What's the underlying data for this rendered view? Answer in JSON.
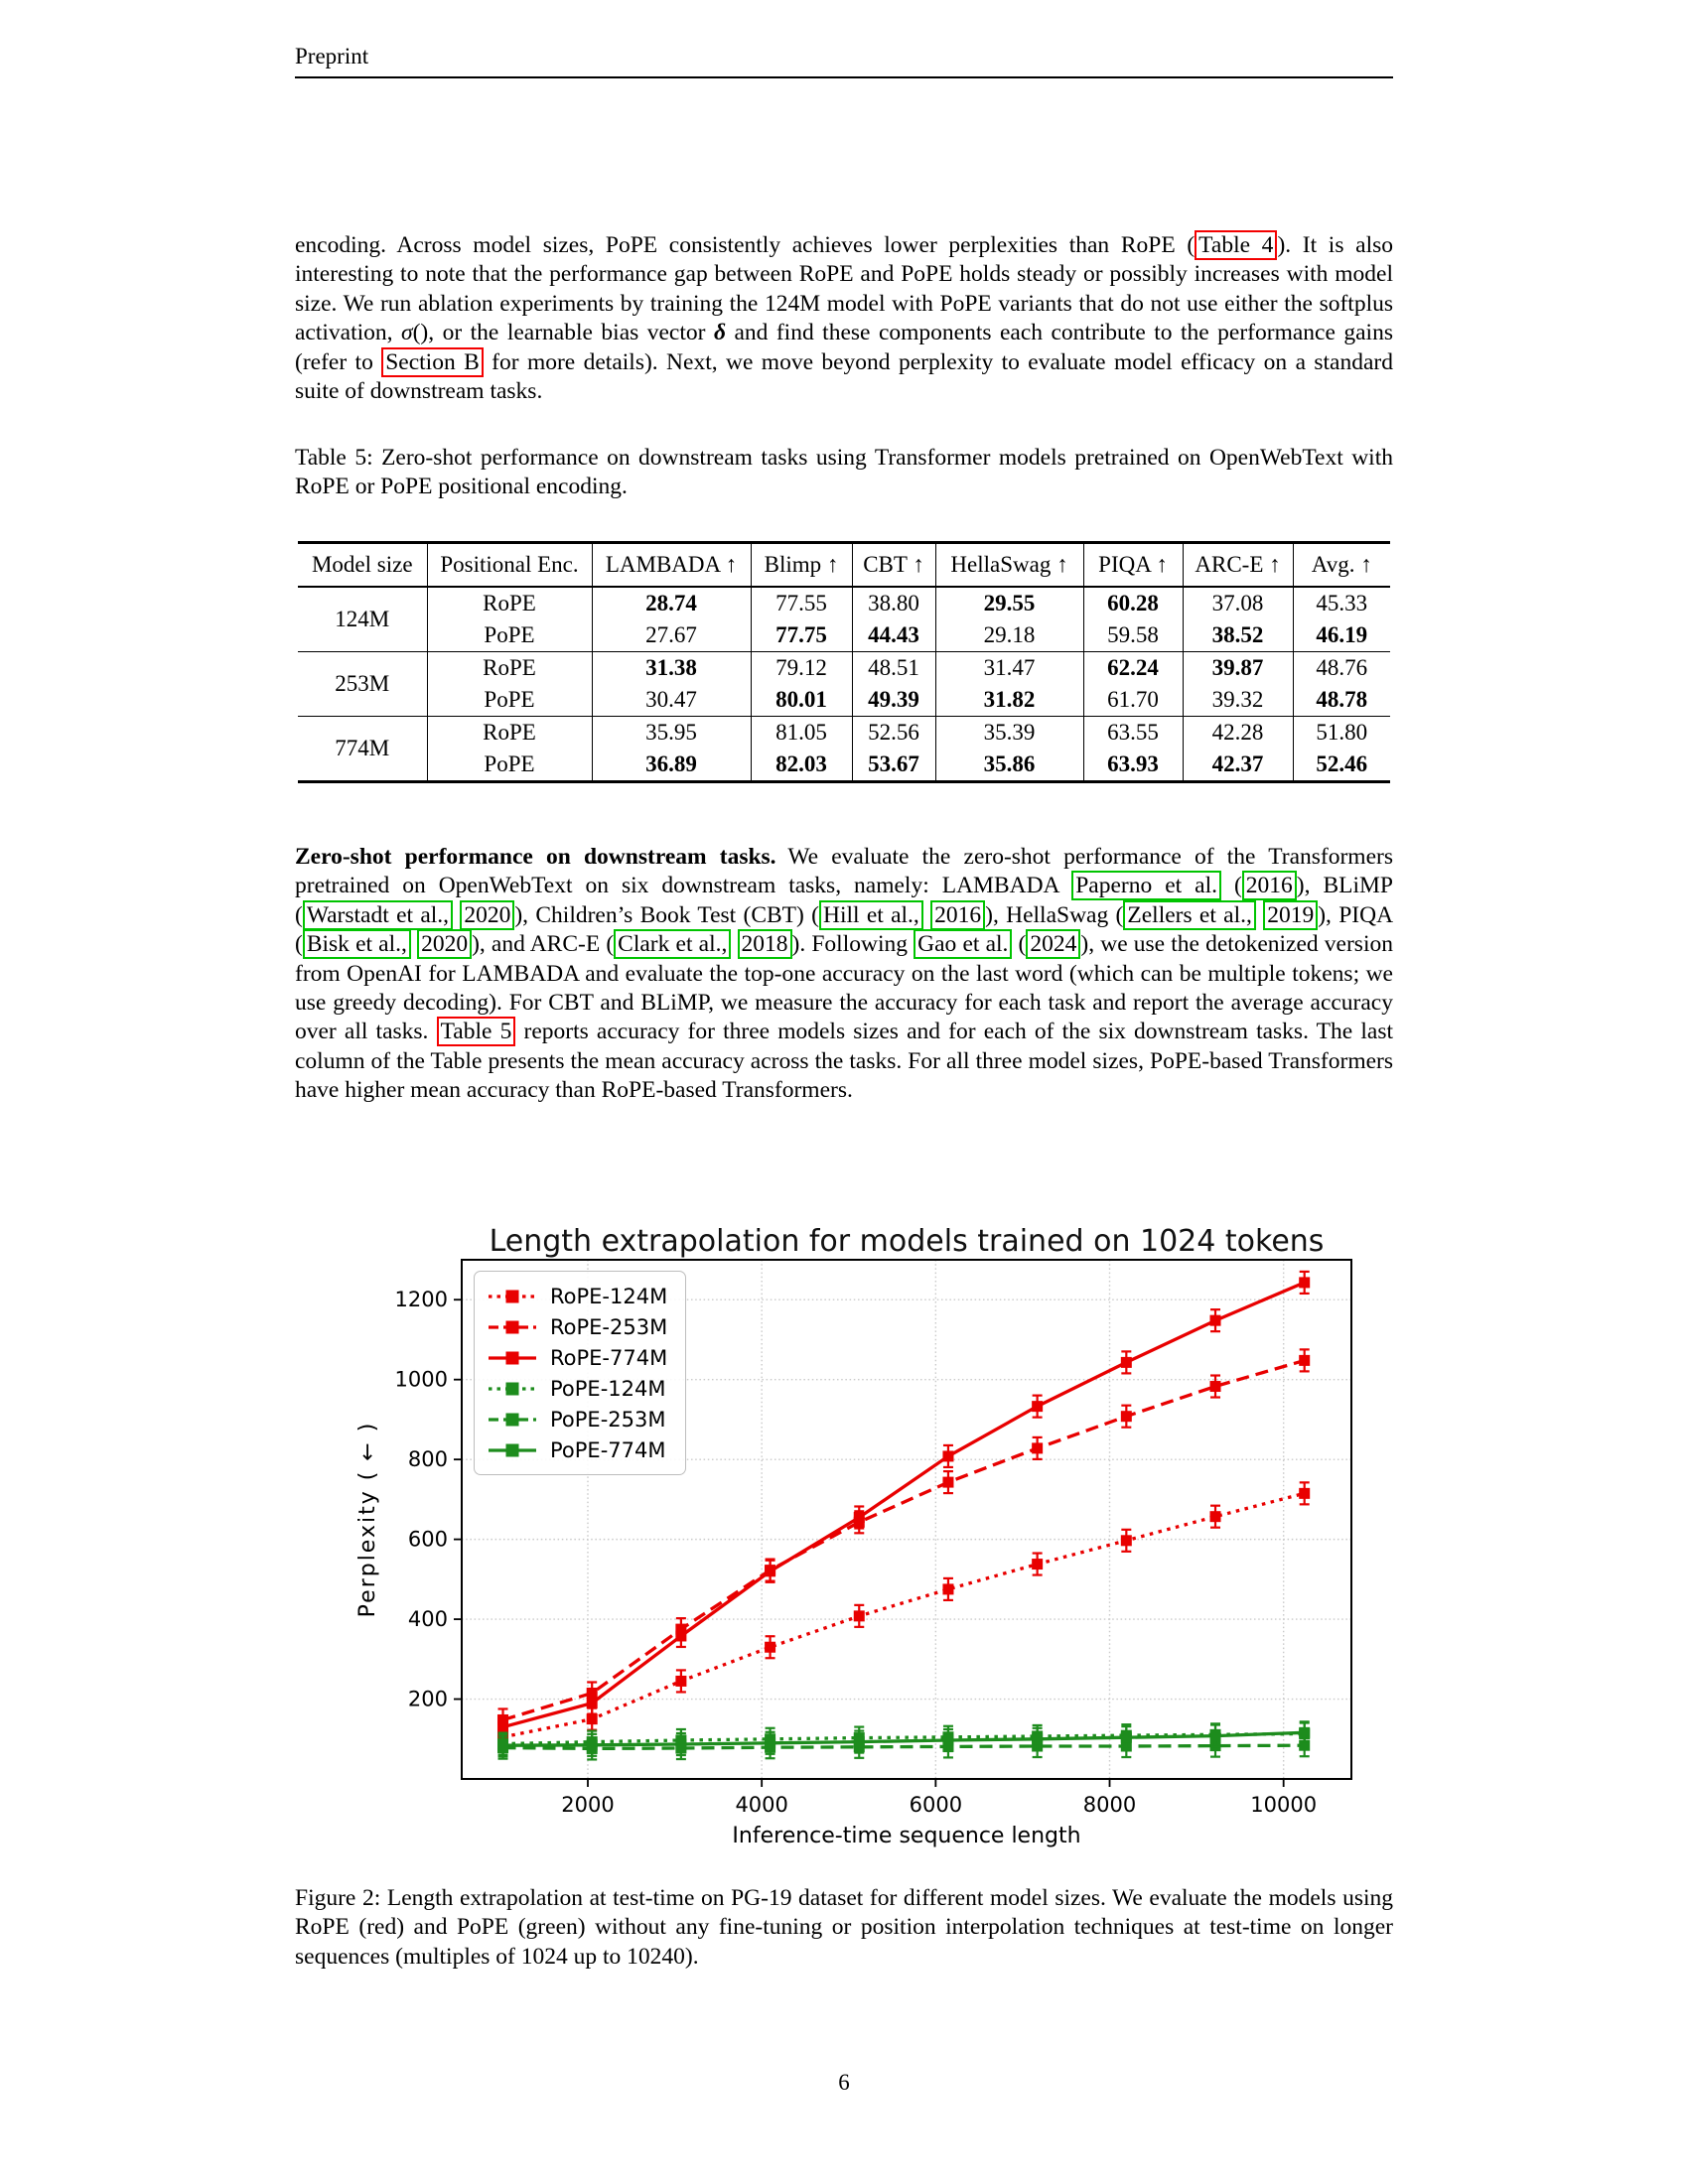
{
  "page": {
    "header": "Preprint",
    "page_number": "6"
  },
  "colors": {
    "link_red": "#f40000",
    "cite_green": "#00c400",
    "rope_red": "#e80000",
    "pope_green": "#1d8c1d"
  },
  "paragraphs": {
    "p1": [
      {
        "t": "encoding.  Across model sizes, PoPE consistently achieves lower perplexities than RoPE ("
      },
      {
        "t": "Table 4",
        "box": "red",
        "name": "ref-table-4"
      },
      {
        "t": "). It is also interesting to note that the performance gap between RoPE and PoPE holds steady or possibly increases with model size.  We run ablation experiments by training the 124M model with PoPE variants that do not use either the softplus activation, "
      },
      {
        "t": "σ",
        "style": "i"
      },
      {
        "t": "(), or the learnable bias vector "
      },
      {
        "t": "δ",
        "style": "bi"
      },
      {
        "t": " and find these components each contribute to the performance gains (refer to "
      },
      {
        "t": "Section B",
        "box": "red",
        "name": "ref-section-b"
      },
      {
        "t": " for more details). Next, we move beyond perplexity to evaluate model efficacy on a standard suite of downstream tasks."
      }
    ],
    "p2": [
      {
        "t": "Zero-shot performance on downstream tasks.",
        "style": "b"
      },
      {
        "t": " We evaluate the zero-shot performance of the Transformers pretrained on OpenWebText on six downstream tasks, namely: LAMBADA "
      },
      {
        "t": "Paperno et al.",
        "box": "green",
        "name": "cite-paperno"
      },
      {
        "t": " ("
      },
      {
        "t": "2016",
        "box": "green",
        "name": "cite-paperno-year"
      },
      {
        "t": "), BLiMP ("
      },
      {
        "t": "Warstadt et al.,",
        "box": "green",
        "name": "cite-warstadt"
      },
      {
        "t": " "
      },
      {
        "t": "2020",
        "box": "green",
        "name": "cite-warstadt-year"
      },
      {
        "t": "), Children’s Book Test (CBT) ("
      },
      {
        "t": "Hill et al.,",
        "box": "green",
        "name": "cite-hill"
      },
      {
        "t": " "
      },
      {
        "t": "2016",
        "box": "green",
        "name": "cite-hill-year"
      },
      {
        "t": "), HellaSwag ("
      },
      {
        "t": "Zellers et al.,",
        "box": "green",
        "name": "cite-zellers"
      },
      {
        "t": " "
      },
      {
        "t": "2019",
        "box": "green",
        "name": "cite-zellers-year"
      },
      {
        "t": "), PIQA ("
      },
      {
        "t": "Bisk et al.,",
        "box": "green",
        "name": "cite-bisk"
      },
      {
        "t": " "
      },
      {
        "t": "2020",
        "box": "green",
        "name": "cite-bisk-year"
      },
      {
        "t": "), and ARC-E ("
      },
      {
        "t": "Clark et al.,",
        "box": "green",
        "name": "cite-clark"
      },
      {
        "t": " "
      },
      {
        "t": "2018",
        "box": "green",
        "name": "cite-clark-year"
      },
      {
        "t": "). Following "
      },
      {
        "t": "Gao et al.",
        "box": "green",
        "name": "cite-gao"
      },
      {
        "t": " ("
      },
      {
        "t": "2024",
        "box": "green",
        "name": "cite-gao-year"
      },
      {
        "t": "), we use the detokenized version from OpenAI for LAMBADA and evaluate the top-one accuracy on the last word (which can be multiple tokens; we use greedy decoding).  For CBT and BLiMP, we measure the accuracy for each task and report the average accuracy over all tasks. "
      },
      {
        "t": "Table 5",
        "box": "red",
        "name": "ref-table-5"
      },
      {
        "t": " reports accuracy for three models sizes and for each of the six downstream tasks.  The last column of the Table presents the mean accuracy across the tasks. For all three model sizes, PoPE-based Transformers have higher mean accuracy than RoPE-based Transformers."
      }
    ]
  },
  "table5": {
    "caption": "Table 5:  Zero-shot performance on downstream tasks using Transformer models pretrained on OpenWebText with RoPE or PoPE positional encoding.",
    "columns": [
      "Model size",
      "Positional Enc.",
      "LAMBADA ↑",
      "Blimp ↑",
      "CBT ↑",
      "HellaSwag ↑",
      "PIQA ↑",
      "ARC-E ↑",
      "Avg. ↑"
    ],
    "groups": [
      {
        "model_size": "124M",
        "rows": [
          {
            "enc": "RoPE",
            "cells": [
              {
                "v": "28.74",
                "b": true
              },
              {
                "v": "77.55"
              },
              {
                "v": "38.80"
              },
              {
                "v": "29.55",
                "b": true
              },
              {
                "v": "60.28",
                "b": true
              },
              {
                "v": "37.08"
              },
              {
                "v": "45.33"
              }
            ]
          },
          {
            "enc": "PoPE",
            "cells": [
              {
                "v": "27.67"
              },
              {
                "v": "77.75",
                "b": true
              },
              {
                "v": "44.43",
                "b": true
              },
              {
                "v": "29.18"
              },
              {
                "v": "59.58"
              },
              {
                "v": "38.52",
                "b": true
              },
              {
                "v": "46.19",
                "b": true
              }
            ]
          }
        ]
      },
      {
        "model_size": "253M",
        "rows": [
          {
            "enc": "RoPE",
            "cells": [
              {
                "v": "31.38",
                "b": true
              },
              {
                "v": "79.12"
              },
              {
                "v": "48.51"
              },
              {
                "v": "31.47"
              },
              {
                "v": "62.24",
                "b": true
              },
              {
                "v": "39.87",
                "b": true
              },
              {
                "v": "48.76"
              }
            ]
          },
          {
            "enc": "PoPE",
            "cells": [
              {
                "v": "30.47"
              },
              {
                "v": "80.01",
                "b": true
              },
              {
                "v": "49.39",
                "b": true
              },
              {
                "v": "31.82",
                "b": true
              },
              {
                "v": "61.70"
              },
              {
                "v": "39.32"
              },
              {
                "v": "48.78",
                "b": true
              }
            ]
          }
        ]
      },
      {
        "model_size": "774M",
        "rows": [
          {
            "enc": "RoPE",
            "cells": [
              {
                "v": "35.95"
              },
              {
                "v": "81.05"
              },
              {
                "v": "52.56"
              },
              {
                "v": "35.39"
              },
              {
                "v": "63.55"
              },
              {
                "v": "42.28"
              },
              {
                "v": "51.80"
              }
            ]
          },
          {
            "enc": "PoPE",
            "cells": [
              {
                "v": "36.89",
                "b": true
              },
              {
                "v": "82.03",
                "b": true
              },
              {
                "v": "53.67",
                "b": true
              },
              {
                "v": "35.86",
                "b": true
              },
              {
                "v": "63.93",
                "b": true
              },
              {
                "v": "42.37",
                "b": true
              },
              {
                "v": "52.46",
                "b": true
              }
            ]
          }
        ]
      }
    ]
  },
  "figure2": {
    "caption": "Figure 2: Length extrapolation at test-time on PG-19 dataset for different model sizes.  We evaluate the models using RoPE (red) and PoPE (green) without any fine-tuning or position interpolation techniques at test-time on longer sequences (multiples of 1024 up to 10240)."
  },
  "chart_data": {
    "type": "line",
    "title": "Length extrapolation for models trained on 1024 tokens",
    "xlabel": "Inference-time sequence length",
    "ylabel": "Perplexity ( ← )",
    "x": [
      1024,
      2048,
      3072,
      4096,
      5120,
      6144,
      7168,
      8192,
      9216,
      10240
    ],
    "xticks": [
      2000,
      4000,
      6000,
      8000,
      10000
    ],
    "yticks": [
      200,
      400,
      600,
      800,
      1000,
      1200
    ],
    "xlim": [
      550,
      10780
    ],
    "ylim": [
      0,
      1300
    ],
    "grid": true,
    "legend_position": "upper-left",
    "series": [
      {
        "name": "RoPE-124M",
        "color": "#e80000",
        "dash": "dotted",
        "values": [
          105,
          150,
          245,
          330,
          408,
          475,
          538,
          597,
          657,
          715
        ]
      },
      {
        "name": "RoPE-253M",
        "color": "#e80000",
        "dash": "dashed",
        "values": [
          148,
          215,
          375,
          523,
          643,
          743,
          828,
          908,
          983,
          1048
        ]
      },
      {
        "name": "RoPE-774M",
        "color": "#e80000",
        "dash": "solid",
        "values": [
          130,
          190,
          358,
          520,
          655,
          808,
          933,
          1043,
          1148,
          1243
        ]
      },
      {
        "name": "PoPE-124M",
        "color": "#1d8c1d",
        "dash": "dotted",
        "values": [
          88,
          93,
          97,
          100,
          103,
          105,
          107,
          109,
          111,
          113
        ]
      },
      {
        "name": "PoPE-253M",
        "color": "#1d8c1d",
        "dash": "dashed",
        "values": [
          78,
          76,
          77,
          79,
          80,
          81,
          82,
          82,
          83,
          84
        ]
      },
      {
        "name": "PoPE-774M",
        "color": "#1d8c1d",
        "dash": "solid",
        "values": [
          84,
          85,
          87,
          90,
          93,
          97,
          100,
          104,
          108,
          116
        ]
      }
    ]
  }
}
